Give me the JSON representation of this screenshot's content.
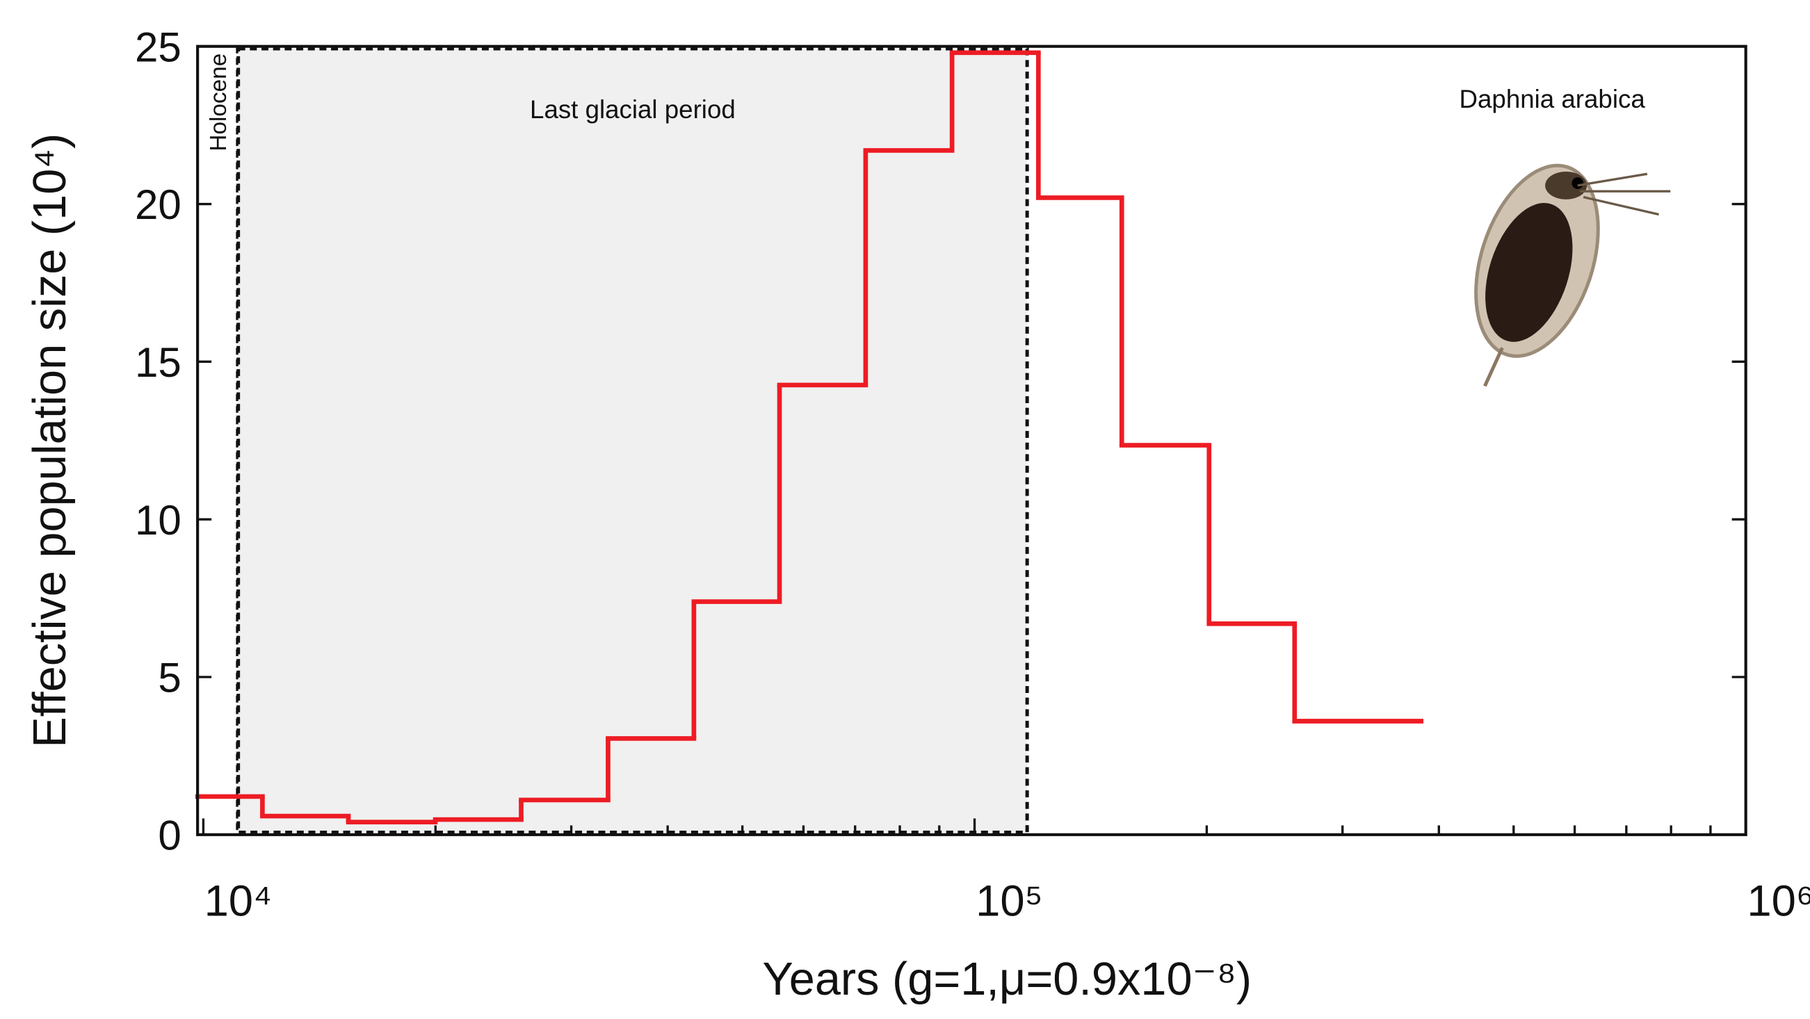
{
  "chart_data": {
    "type": "step",
    "xlabel": "Years (g=1,μ=0.9x10⁻⁸)",
    "ylabel": "Effective population size (10⁴)",
    "xscale": "log",
    "xlim": [
      9830,
      1000000
    ],
    "ylim": [
      0,
      25
    ],
    "xticks": [
      {
        "value": 10000,
        "label": "10⁴"
      },
      {
        "value": 100000,
        "label": "10⁵"
      },
      {
        "value": 1000000,
        "label": "10⁶"
      }
    ],
    "xminorticks": [
      20000,
      30000,
      40000,
      50000,
      60000,
      70000,
      80000,
      90000,
      200000,
      300000,
      400000,
      500000,
      600000,
      700000,
      800000,
      900000
    ],
    "yticks": [
      0,
      5,
      10,
      15,
      20,
      25
    ],
    "series": [
      {
        "name": "Daphnia arabica",
        "color": "#ed1c24",
        "bins": [
          9830,
          11930,
          15420,
          19990,
          25830,
          33480,
          43260,
          55860,
          72240,
          93500,
          121000,
          155200,
          201400,
          260000,
          379300
        ],
        "values": [
          1.21,
          0.59,
          0.4,
          0.48,
          1.1,
          3.05,
          7.39,
          14.26,
          21.7,
          24.8,
          20.2,
          12.35,
          6.69,
          3.6
        ]
      }
    ],
    "regions": [
      {
        "label": "Holocene",
        "start": 9830,
        "end": 11100
      },
      {
        "label": "Last glacial period",
        "start": 11100,
        "end": 117000,
        "color": "#f0f0f0"
      }
    ]
  }
}
